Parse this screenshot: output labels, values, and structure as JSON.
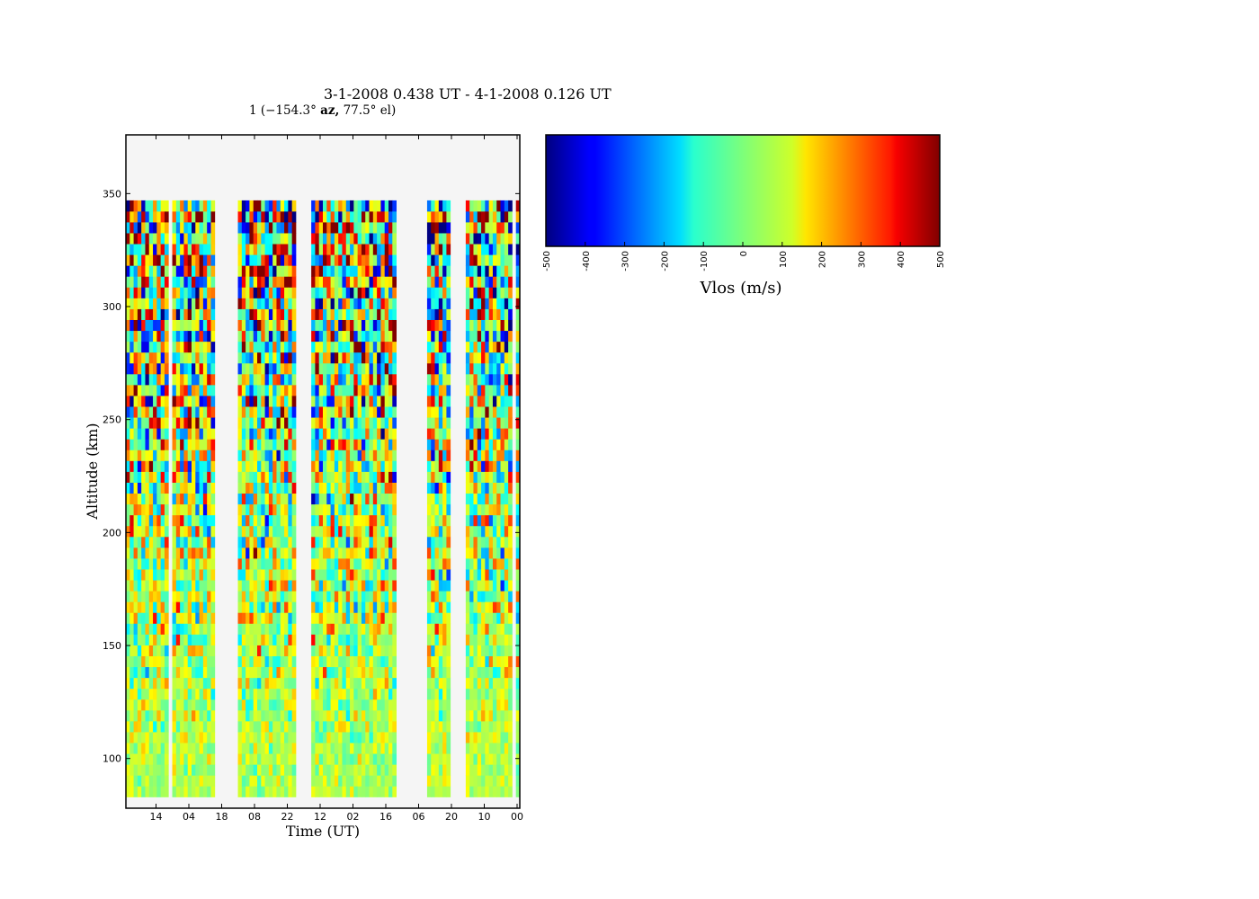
{
  "chart_data": {
    "type": "heatmap",
    "title": "3-1-2008 0.438 UT - 4-1-2008 0.126 UT",
    "subtitle": {
      "beam": "1",
      "az_value": "(−154.3°",
      "az_word": "az,",
      "el_text": "77.5° el)"
    },
    "xlabel": "Time (UT)",
    "ylabel": "Altitude (km)",
    "ylim": [
      78,
      376
    ],
    "y_ticks": [
      100,
      150,
      200,
      250,
      300,
      350
    ],
    "x_tick_labels": [
      "14",
      "04",
      "18",
      "08",
      "22",
      "12",
      "02",
      "16",
      "06",
      "20",
      "10",
      "00"
    ],
    "altitude_range_of_data": [
      83,
      347
    ],
    "data_segments": [
      {
        "start_col": 0,
        "end_col": 23
      },
      {
        "start_col": 29,
        "end_col": 45
      },
      {
        "start_col": 48,
        "end_col": 72
      },
      {
        "start_col": 77,
        "end_col": 84
      },
      {
        "start_col": 88,
        "end_col": 102
      }
    ],
    "total_columns": 102,
    "description": "",
    "colorbar": {
      "label": "Vlos (m/s)",
      "min": -500,
      "max": 500,
      "ticks": [
        -500,
        -400,
        -300,
        -200,
        -100,
        0,
        100,
        200,
        300,
        400,
        500
      ],
      "colormap": "jet",
      "orientation": "horizontal"
    },
    "background_color": "#f5f5f5"
  }
}
